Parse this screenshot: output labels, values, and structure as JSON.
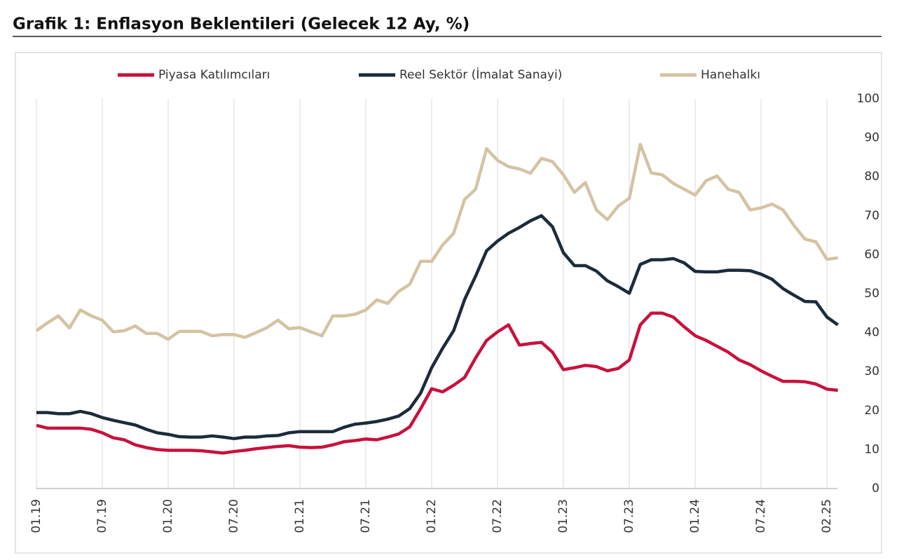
{
  "chart_data": {
    "type": "line",
    "title": "Grafik 1: Enflasyon Beklentileri (Gelecek 12 Ay, %)",
    "categories": [
      "01.19",
      null,
      null,
      null,
      null,
      null,
      "07.19",
      null,
      null,
      null,
      null,
      null,
      "01.20",
      null,
      null,
      null,
      null,
      null,
      "07.20",
      null,
      null,
      null,
      null,
      null,
      "01.21",
      null,
      null,
      null,
      null,
      null,
      "07.21",
      null,
      null,
      null,
      null,
      null,
      "01.22",
      null,
      null,
      null,
      null,
      null,
      "07.22",
      null,
      null,
      null,
      null,
      null,
      "01.23",
      null,
      null,
      null,
      null,
      null,
      "07.23",
      null,
      null,
      null,
      null,
      null,
      "01.24",
      null,
      null,
      null,
      null,
      null,
      "07.24",
      null,
      null,
      null,
      null,
      null,
      "02.25",
      null
    ],
    "series": [
      {
        "name": "Piyasa Katılımcıları",
        "color": "#c8113c",
        "values": [
          16.2,
          15.5,
          15.5,
          15.5,
          15.5,
          15.2,
          14.3,
          13,
          12.5,
          11.2,
          10.5,
          10,
          9.8,
          9.8,
          9.8,
          9.7,
          9.4,
          9.1,
          9.5,
          9.8,
          10.2,
          10.5,
          10.8,
          11,
          10.6,
          10.5,
          10.6,
          11.2,
          12,
          12.3,
          12.7,
          12.5,
          13.2,
          14,
          15.8,
          20.5,
          25.6,
          24.8,
          26.5,
          28.5,
          33.5,
          38,
          40.2,
          42,
          36.8,
          37.2,
          37.5,
          35,
          30.5,
          31,
          31.6,
          31.3,
          30.2,
          30.8,
          33,
          42,
          45,
          45,
          44,
          41.5,
          39.2,
          38,
          36.5,
          35,
          33,
          31.8,
          30.2,
          28.8,
          27.5,
          27.5,
          27.4,
          26.8,
          25.5,
          25.2
        ]
      },
      {
        "name": "Reel Sektör (İmalat Sanayi)",
        "color": "#1c2b3c",
        "values": [
          19.5,
          19.5,
          19.2,
          19.2,
          19.8,
          19.2,
          18.2,
          17.5,
          16.9,
          16.3,
          15.2,
          14.3,
          13.9,
          13.3,
          13.2,
          13.2,
          13.5,
          13.2,
          12.8,
          13.2,
          13.2,
          13.5,
          13.6,
          14.3,
          14.6,
          14.6,
          14.6,
          14.6,
          15.7,
          16.5,
          16.8,
          17.2,
          17.8,
          18.6,
          20.5,
          24.5,
          31,
          36,
          40.5,
          48.5,
          54.5,
          61,
          63.5,
          65.5,
          67,
          68.7,
          70,
          67.2,
          60.5,
          57.2,
          57.2,
          55.8,
          53.3,
          51.8,
          50.1,
          57.5,
          58.7,
          58.7,
          59,
          57.9,
          55.7,
          55.6,
          55.6,
          56,
          56,
          55.9,
          55,
          53.7,
          51.3,
          49.6,
          48,
          47.9,
          44,
          42
        ]
      },
      {
        "name": "Hanehalkı",
        "color": "#d4c3a3",
        "values": [
          40.5,
          42.5,
          44.3,
          41.2,
          45.8,
          44.3,
          43.2,
          40.2,
          40.5,
          41.7,
          39.8,
          39.8,
          38.3,
          40.3,
          40.3,
          40.3,
          39.2,
          39.5,
          39.5,
          38.8,
          40,
          41.3,
          43.2,
          41,
          41.3,
          40.2,
          39.2,
          44.3,
          44.3,
          44.7,
          45.8,
          48.4,
          47.5,
          50.6,
          52.4,
          58.3,
          58.3,
          62.5,
          65.5,
          74.2,
          76.8,
          87.2,
          84.2,
          82.6,
          82,
          80.9,
          84.7,
          83.9,
          80.5,
          76,
          78.5,
          71.5,
          69,
          72.5,
          74.5,
          88.3,
          81,
          80.5,
          78.3,
          76.8,
          75.3,
          79,
          80.2,
          76.8,
          76,
          71.5,
          72,
          73,
          71.5,
          67.5,
          64,
          63.3,
          58.8,
          59.2
        ]
      }
    ],
    "ylim": [
      0,
      100
    ],
    "yticks": [
      0,
      10,
      20,
      30,
      40,
      50,
      60,
      70,
      80,
      90,
      100
    ],
    "grid": true
  }
}
